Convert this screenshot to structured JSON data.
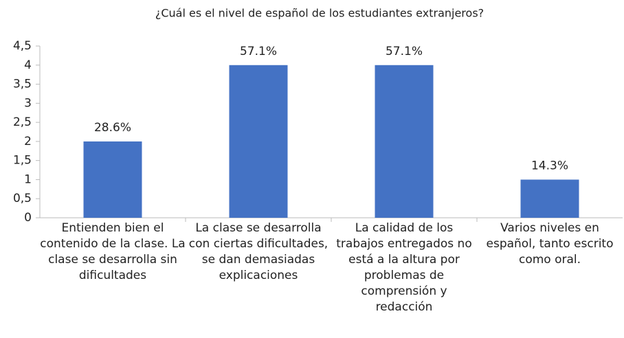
{
  "chart_data": {
    "type": "bar",
    "title": "¿Cuál es el nivel de español de los estudiantes extranjeros?",
    "categories": [
      "Entienden bien el contenido de la clase. La clase se desarrolla sin dificultades",
      "La clase se desarrolla con ciertas dificultades, se dan demasiadas explicaciones",
      "La calidad de los trabajos entregados no está a la altura por problemas de comprensión y redacción",
      "Varios niveles en español, tanto escrito como oral."
    ],
    "values": [
      2,
      4,
      4,
      1
    ],
    "data_labels": [
      "28.6%",
      "57.1%",
      "57.1%",
      "14.3%"
    ],
    "color": "#4472c4",
    "ylim": [
      0,
      4.5
    ],
    "yticks": [
      0,
      {
        "value": 0.5,
        "label": "0,5"
      },
      1,
      {
        "value": 1.5,
        "label": "1,5"
      },
      2,
      {
        "value": 2.5,
        "label": "2,5"
      },
      3,
      {
        "value": 3.5,
        "label": "3,5"
      },
      4,
      {
        "value": 4.5,
        "label": "4,5"
      }
    ],
    "grid": false
  }
}
